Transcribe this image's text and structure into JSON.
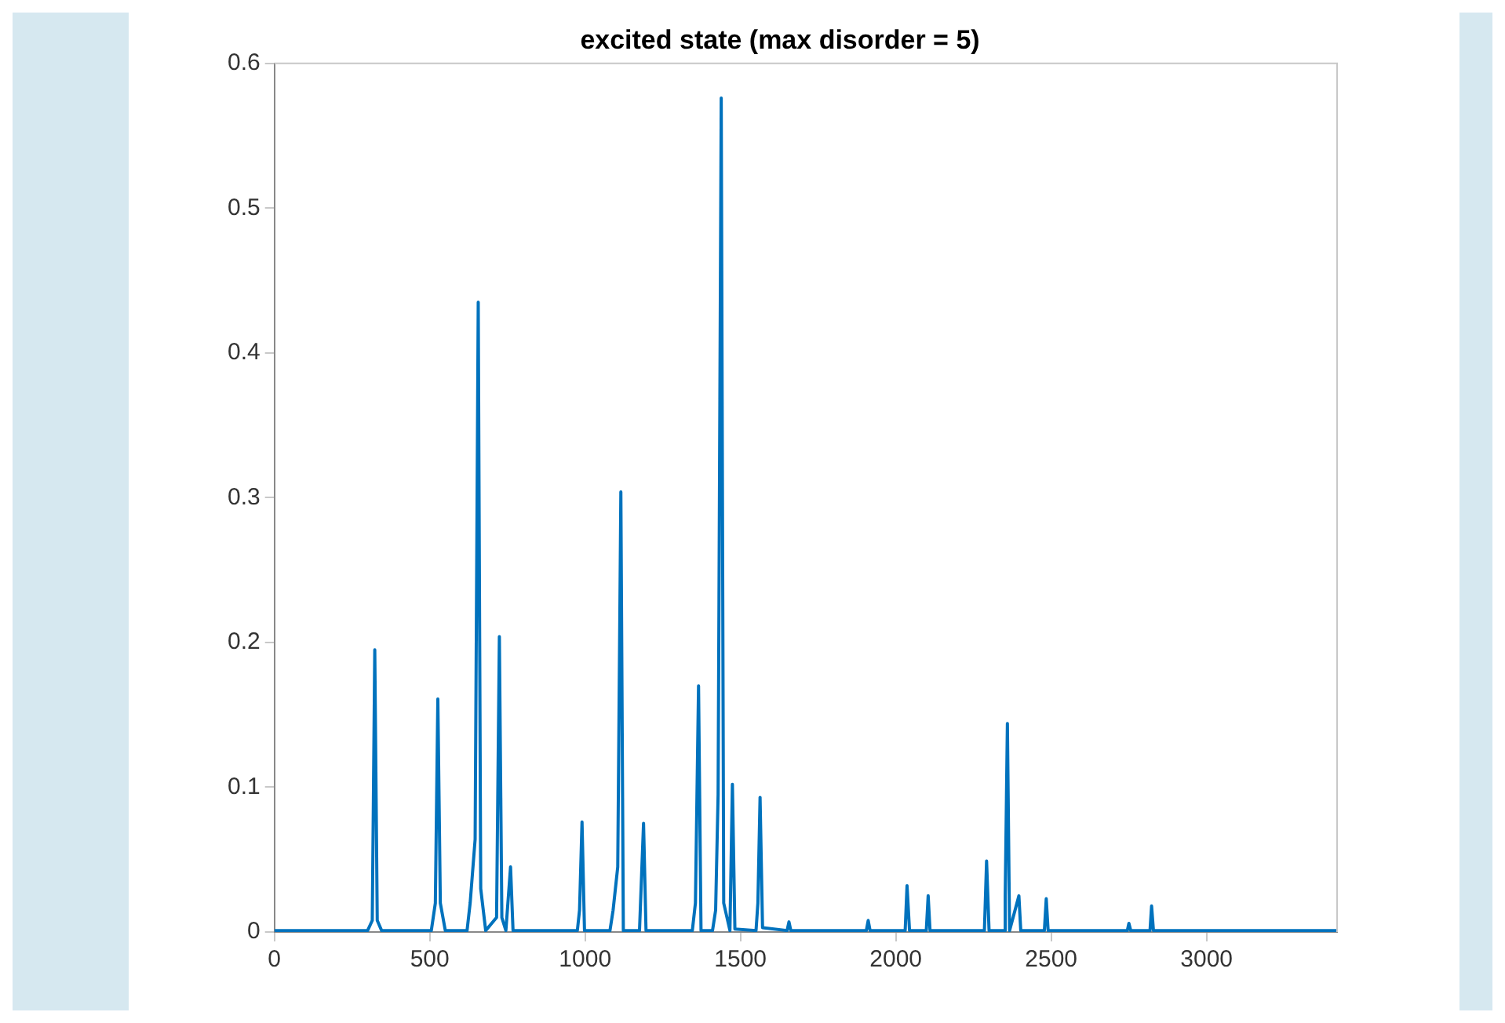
{
  "chart_data": {
    "type": "line",
    "title": "excited state (max disorder = 5)",
    "x": [
      0,
      300,
      315,
      323,
      331,
      345,
      505,
      518,
      526,
      534,
      550,
      620,
      630,
      646,
      656,
      664,
      680,
      715,
      724,
      732,
      745,
      760,
      768,
      975,
      982,
      990,
      998,
      1080,
      1090,
      1105,
      1115,
      1123,
      1175,
      1188,
      1196,
      1345,
      1355,
      1365,
      1373,
      1410,
      1420,
      1428,
      1438,
      1446,
      1466,
      1474,
      1482,
      1550,
      1556,
      1563,
      1571,
      1650,
      1656,
      1662,
      1905,
      1911,
      1917,
      2030,
      2036,
      2044,
      2098,
      2104,
      2110,
      2285,
      2292,
      2300,
      2350,
      2352,
      2359,
      2366,
      2396,
      2402,
      2478,
      2484,
      2490,
      2745,
      2750,
      2756,
      2818,
      2823,
      2829,
      3420
    ],
    "series": [
      {
        "color": "#0072bd",
        "values": [
          0.001,
          0.001,
          0.008,
          0.195,
          0.008,
          0.001,
          0.001,
          0.02,
          0.161,
          0.02,
          0.001,
          0.001,
          0.02,
          0.064,
          0.435,
          0.03,
          0.001,
          0.01,
          0.204,
          0.01,
          0.001,
          0.045,
          0.001,
          0.001,
          0.015,
          0.076,
          0.001,
          0.001,
          0.015,
          0.045,
          0.304,
          0.001,
          0.001,
          0.075,
          0.001,
          0.001,
          0.02,
          0.17,
          0.001,
          0.001,
          0.015,
          0.095,
          0.576,
          0.02,
          0.001,
          0.102,
          0.002,
          0.001,
          0.02,
          0.093,
          0.003,
          0.001,
          0.007,
          0.001,
          0.001,
          0.008,
          0.001,
          0.001,
          0.032,
          0.001,
          0.001,
          0.025,
          0.001,
          0.001,
          0.049,
          0.001,
          0.001,
          0.025,
          0.144,
          0.001,
          0.025,
          0.001,
          0.001,
          0.023,
          0.001,
          0.001,
          0.006,
          0.001,
          0.001,
          0.018,
          0.001,
          0.001
        ]
      }
    ],
    "xlim": [
      0,
      3420
    ],
    "xticks": [
      0,
      500,
      1000,
      1500,
      2000,
      2500,
      3000
    ],
    "ylim": [
      0,
      0.6
    ],
    "yticks": [
      0,
      0.1,
      0.2,
      0.3,
      0.4,
      0.5,
      0.6
    ],
    "grid": false,
    "legend": false,
    "marker": "none",
    "line_style": "solid"
  }
}
